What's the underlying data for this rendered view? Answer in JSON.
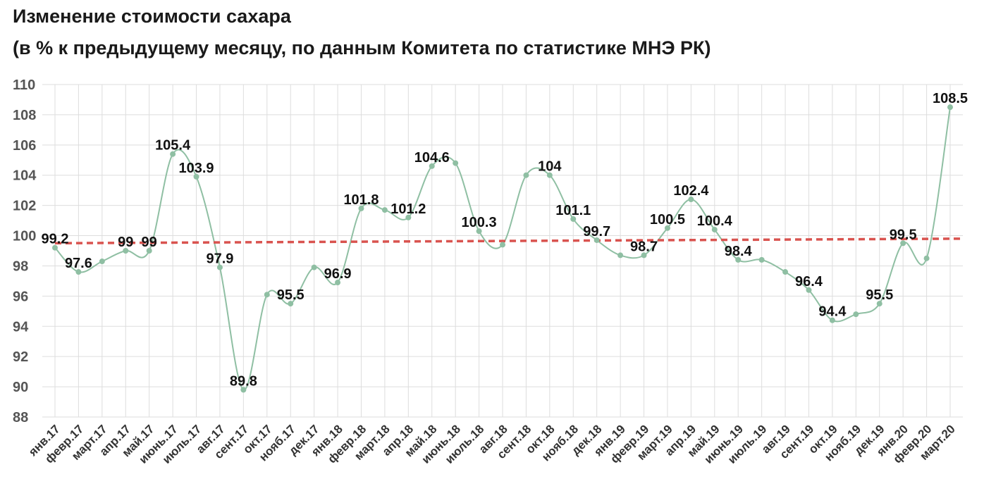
{
  "chart_data": {
    "type": "line",
    "title": "Изменение стоимости сахара",
    "subtitle": "(в % к предыдущему месяцу, по данным Комитета по статистике МНЭ РК)",
    "xlabel": "",
    "ylabel": "",
    "ylim": [
      88,
      110
    ],
    "yticks": [
      88,
      90,
      92,
      94,
      96,
      98,
      100,
      102,
      104,
      106,
      108,
      110
    ],
    "grid": true,
    "legend": "none",
    "line_color": "#8fbfa3",
    "trend_color": "#d9534f",
    "categories": [
      "янв.17",
      "февр.17",
      "март.17",
      "апр.17",
      "май.17",
      "июнь.17",
      "июль.17",
      "авг.17",
      "сент.17",
      "окт.17",
      "нояб.17",
      "дек.17",
      "янв.18",
      "февр.18",
      "март.18",
      "апр.18",
      "май.18",
      "июнь.18",
      "июль.18",
      "авг.18",
      "сент.18",
      "окт.18",
      "нояб.18",
      "дек.18",
      "янв.19",
      "февр.19",
      "март.19",
      "апр.19",
      "май.19",
      "июнь.19",
      "июль.19",
      "авг.19",
      "сент.19",
      "окт.19",
      "нояб.19",
      "дек.19",
      "янв.20",
      "февр.20",
      "март.20"
    ],
    "values": [
      99.2,
      97.6,
      98.3,
      99,
      99,
      105.4,
      103.9,
      97.9,
      89.8,
      96.1,
      95.5,
      97.9,
      96.9,
      101.8,
      101.7,
      101.2,
      104.6,
      104.8,
      100.3,
      99.4,
      104,
      104,
      101.1,
      99.7,
      98.7,
      98.7,
      100.5,
      102.4,
      100.4,
      98.4,
      98.4,
      97.6,
      96.4,
      94.4,
      94.8,
      95.5,
      99.5,
      98.5,
      108.5
    ],
    "data_labels": [
      {
        "index": 0,
        "text": "99.2"
      },
      {
        "index": 1,
        "text": "97.6"
      },
      {
        "index": 3,
        "text": "99"
      },
      {
        "index": 4,
        "text": "99"
      },
      {
        "index": 5,
        "text": "105.4"
      },
      {
        "index": 6,
        "text": "103.9"
      },
      {
        "index": 7,
        "text": "97.9"
      },
      {
        "index": 8,
        "text": "89.8"
      },
      {
        "index": 10,
        "text": "95.5"
      },
      {
        "index": 12,
        "text": "96.9"
      },
      {
        "index": 13,
        "text": "101.8"
      },
      {
        "index": 15,
        "text": "101.2"
      },
      {
        "index": 16,
        "text": "104.6"
      },
      {
        "index": 18,
        "text": "100.3"
      },
      {
        "index": 21,
        "text": "104"
      },
      {
        "index": 22,
        "text": "101.1"
      },
      {
        "index": 23,
        "text": "99.7"
      },
      {
        "index": 25,
        "text": "98.7"
      },
      {
        "index": 26,
        "text": "100.5"
      },
      {
        "index": 27,
        "text": "102.4"
      },
      {
        "index": 28,
        "text": "100.4"
      },
      {
        "index": 29,
        "text": "98.4"
      },
      {
        "index": 32,
        "text": "96.4"
      },
      {
        "index": 33,
        "text": "94.4"
      },
      {
        "index": 35,
        "text": "95.5"
      },
      {
        "index": 36,
        "text": "99.5"
      },
      {
        "index": 38,
        "text": "108.5"
      }
    ],
    "trendline": {
      "type": "linear",
      "start": 99.5,
      "end": 99.8
    }
  }
}
